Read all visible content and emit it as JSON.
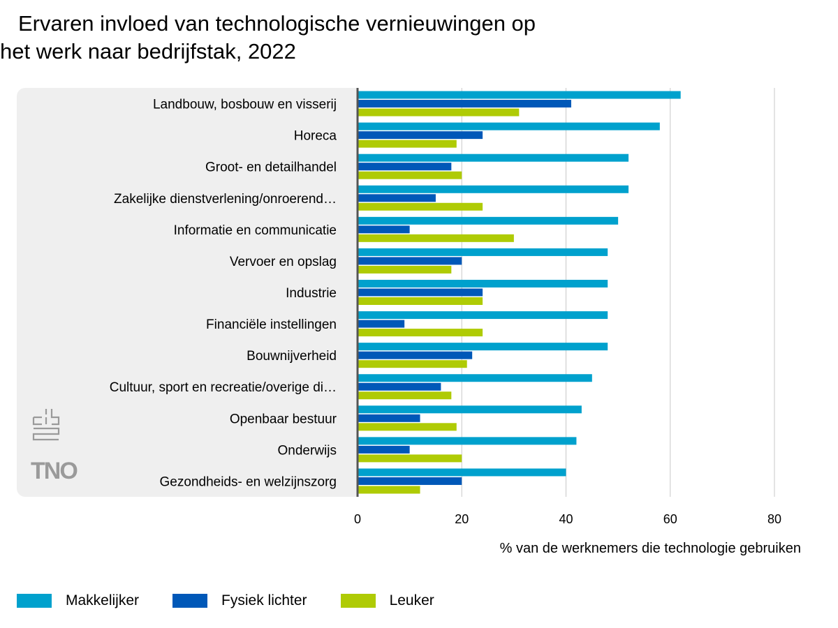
{
  "chart_data": {
    "type": "bar",
    "orientation": "horizontal",
    "title": "Ervaren invloed van technologische vernieuwingen op het werk naar bedrijfstak, 2022",
    "title_lines": [
      "Ervaren invloed van technologische vernieuwingen op",
      "het werk naar bedrijfstak, 2022"
    ],
    "xlabel": "% van de werknemers die technologie gebruiken",
    "ylabel": "",
    "xlim": [
      0,
      80
    ],
    "xticks": [
      0,
      20,
      40,
      60,
      80
    ],
    "grid": true,
    "legend_position": "bottom",
    "categories": [
      "Landbouw, bosbouw en visserij",
      "Horeca",
      "Groot- en detailhandel",
      "Zakelijke dienstverlening/onroerend…",
      "Informatie en communicatie",
      "Vervoer en opslag",
      "Industrie",
      "Financiële instellingen",
      "Bouwnijverheid",
      "Cultuur, sport en recreatie/overige di…",
      "Openbaar bestuur",
      "Onderwijs",
      "Gezondheids- en welzijnszorg"
    ],
    "series": [
      {
        "name": "Makkelijker",
        "color": "#00a1cd",
        "values": [
          62,
          58,
          52,
          52,
          50,
          48,
          48,
          48,
          48,
          45,
          43,
          42,
          40
        ]
      },
      {
        "name": "Fysiek lichter",
        "color": "#0058b8",
        "values": [
          41,
          24,
          18,
          15,
          10,
          20,
          24,
          9,
          22,
          16,
          12,
          10,
          20
        ]
      },
      {
        "name": "Leuker",
        "color": "#afcb05",
        "values": [
          31,
          19,
          20,
          24,
          30,
          18,
          24,
          24,
          21,
          18,
          19,
          20,
          12
        ]
      }
    ]
  },
  "logos": {
    "cbs": "cbs-logo",
    "tno_text": "TNO"
  }
}
